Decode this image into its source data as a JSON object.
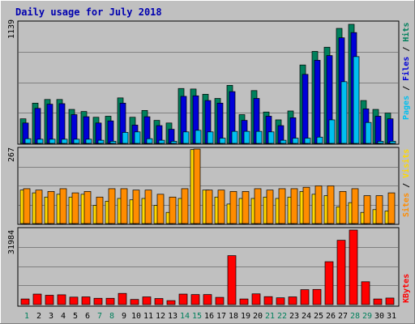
{
  "chart_data": [
    {
      "type": "bar",
      "title": "Daily usage for July 2018",
      "categories": [
        "1",
        "2",
        "3",
        "4",
        "5",
        "6",
        "7",
        "8",
        "9",
        "10",
        "11",
        "12",
        "13",
        "14",
        "15",
        "16",
        "17",
        "18",
        "19",
        "20",
        "21",
        "22",
        "23",
        "24",
        "25",
        "26",
        "27",
        "28",
        "29",
        "30",
        "31"
      ],
      "weekend_days": [
        "1",
        "7",
        "8",
        "14",
        "15",
        "21",
        "22",
        "28",
        "29"
      ],
      "ymax_label": "1139",
      "ylim": [
        0,
        1139
      ],
      "series": [
        {
          "name": "Hits",
          "color": "#00805c",
          "values": [
            235,
            385,
            420,
            420,
            325,
            305,
            250,
            260,
            435,
            250,
            315,
            220,
            195,
            525,
            520,
            470,
            430,
            555,
            275,
            505,
            300,
            225,
            310,
            750,
            880,
            920,
            1100,
            1139,
            410,
            325,
            290
          ]
        },
        {
          "name": "Files",
          "color": "#0000d8",
          "values": [
            195,
            335,
            375,
            380,
            275,
            255,
            195,
            215,
            385,
            175,
            255,
            170,
            135,
            450,
            455,
            410,
            385,
            495,
            220,
            430,
            260,
            170,
            245,
            660,
            795,
            840,
            1010,
            1060,
            330,
            260,
            235
          ]
        },
        {
          "name": "Pages",
          "color": "#00bff0",
          "values": [
            45,
            40,
            40,
            40,
            40,
            40,
            30,
            20,
            105,
            110,
            45,
            30,
            20,
            110,
            125,
            110,
            50,
            115,
            115,
            115,
            110,
            30,
            50,
            50,
            60,
            225,
            590,
            830,
            200,
            20,
            20
          ]
        }
      ],
      "legend": [
        "Pages",
        "Files",
        "Hits"
      ]
    },
    {
      "type": "bar",
      "ymax_label": "267",
      "ylim": [
        0,
        267
      ],
      "series": [
        {
          "name": "Sites",
          "color": "#ffd800",
          "values": [
            120,
            110,
            95,
            105,
            95,
            105,
            65,
            80,
            90,
            85,
            90,
            65,
            40,
            90,
            265,
            120,
            95,
            70,
            90,
            90,
            95,
            90,
            95,
            115,
            105,
            100,
            60,
            75,
            40,
            50,
            45
          ]
        },
        {
          "name": "Visits",
          "color": "#ff8c00",
          "values": [
            125,
            120,
            115,
            125,
            110,
            115,
            95,
            125,
            125,
            120,
            120,
            105,
            95,
            125,
            267,
            120,
            120,
            115,
            115,
            125,
            120,
            125,
            125,
            130,
            135,
            135,
            115,
            125,
            100,
            100,
            110
          ]
        }
      ],
      "legend": [
        "Sites",
        "Visits"
      ]
    },
    {
      "type": "bar",
      "ymax_label": "31984",
      "ylim": [
        0,
        31984
      ],
      "series": [
        {
          "name": "KBytes",
          "color": "#ff0000",
          "values": [
            2400,
            4500,
            4000,
            4200,
            3200,
            3300,
            2700,
            2700,
            4800,
            2200,
            3300,
            2600,
            1700,
            4500,
            4300,
            4300,
            3100,
            21000,
            2400,
            4600,
            3400,
            2900,
            3300,
            6400,
            6500,
            18400,
            27600,
            31984,
            9800,
            2400,
            2800
          ]
        }
      ],
      "legend": [
        "KBytes"
      ]
    }
  ]
}
